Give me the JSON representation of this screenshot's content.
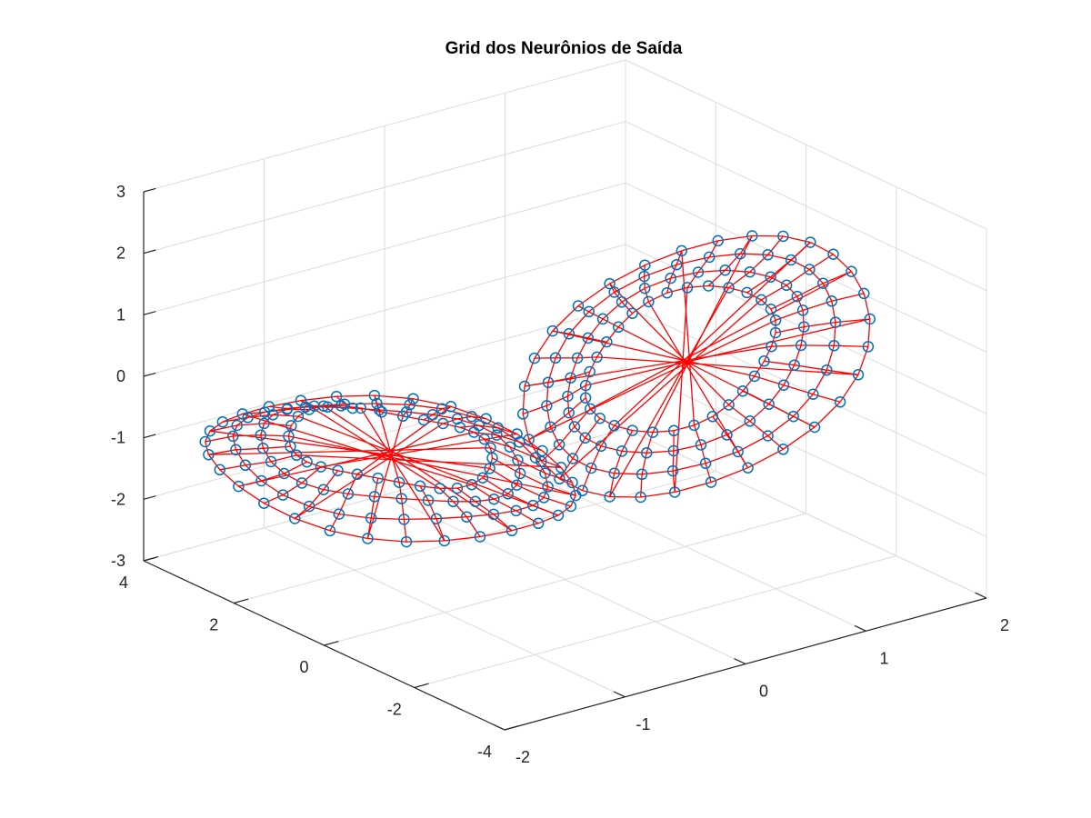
{
  "chart_data": {
    "type": "scatter3d",
    "title": "Grid dos Neurônios de Saída",
    "xlabel": "",
    "ylabel": "",
    "zlabel": "",
    "xlim": [
      -2,
      2
    ],
    "ylim": [
      -4,
      4
    ],
    "zlim": [
      -3,
      3
    ],
    "x_ticks": [
      "-2",
      "-1",
      "0",
      "1",
      "2"
    ],
    "y_ticks": [
      "-4",
      "-2",
      "0",
      "2",
      "4"
    ],
    "z_ticks": [
      "-3",
      "-2",
      "-1",
      "0",
      "1",
      "2",
      "3"
    ],
    "grid": true,
    "series": [
      {
        "marker": "circle",
        "marker_color": "#0072bd",
        "line_color": "#ff0000",
        "clusters": [
          {
            "shape": "ring",
            "center": [
              -1.0,
              1.2,
              -0.9
            ],
            "radius_xy": 1.5,
            "rows": 4,
            "cols": 30,
            "inner_scale": 0.55,
            "z_spread": 0.35
          },
          {
            "shape": "ring",
            "center": [
              0.8,
              -0.6,
              0.3
            ],
            "radius_xz": 1.6,
            "rows": 4,
            "cols": 30,
            "inner_scale": 0.55,
            "y_spread": 0.35
          }
        ]
      }
    ]
  },
  "colors": {
    "marker": "#0072bd",
    "edge": "#ff0000",
    "grid": "#dcdcdc",
    "axis": "#262626"
  }
}
